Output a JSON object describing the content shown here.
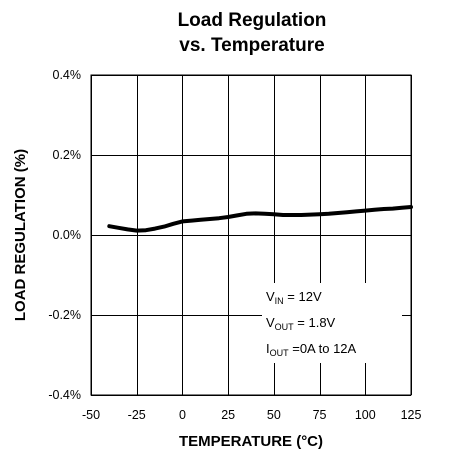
{
  "chart_data": {
    "type": "line",
    "title_line1": "Load Regulation",
    "title_line2": "vs. Temperature",
    "xlabel": "TEMPERATURE (°C)",
    "ylabel": "LOAD REGULATION (%)",
    "xlim": [
      -50,
      125
    ],
    "ylim": [
      -0.4,
      0.4
    ],
    "grid": true,
    "x_ticks": [
      -50,
      -25,
      0,
      25,
      50,
      75,
      100,
      125
    ],
    "y_ticks": [
      -0.4,
      -0.2,
      0.0,
      0.2,
      0.4
    ],
    "x_tick_labels": [
      "-50",
      "-25",
      "0",
      "25",
      "50",
      "75",
      "100",
      "125"
    ],
    "y_tick_labels": [
      "-0.4%",
      "-0.2%",
      "0.0%",
      "0.2%",
      "0.4%"
    ],
    "series": [
      {
        "x": [
          -40,
          -35,
          -30,
          -25,
          -20,
          -15,
          -10,
          -5,
          0,
          5,
          10,
          15,
          20,
          25,
          30,
          35,
          40,
          45,
          50,
          55,
          60,
          65,
          70,
          75,
          80,
          85,
          90,
          95,
          100,
          105,
          110,
          115,
          120,
          125
        ],
        "y": [
          0.022,
          0.018,
          0.014,
          0.011,
          0.012,
          0.016,
          0.021,
          0.028,
          0.034,
          0.036,
          0.038,
          0.04,
          0.042,
          0.045,
          0.049,
          0.053,
          0.054,
          0.053,
          0.052,
          0.05,
          0.05,
          0.05,
          0.051,
          0.052,
          0.053,
          0.055,
          0.057,
          0.059,
          0.061,
          0.063,
          0.065,
          0.066,
          0.068,
          0.07
        ]
      }
    ],
    "annotation": {
      "line1": {
        "main": "V",
        "sub": "IN",
        "rest": " = 12V"
      },
      "line2": {
        "main": "V",
        "sub": "OUT",
        "rest": " = 1.8V"
      },
      "line3": {
        "main": "I",
        "sub": "OUT",
        "rest": " =0A to 12A"
      }
    }
  }
}
